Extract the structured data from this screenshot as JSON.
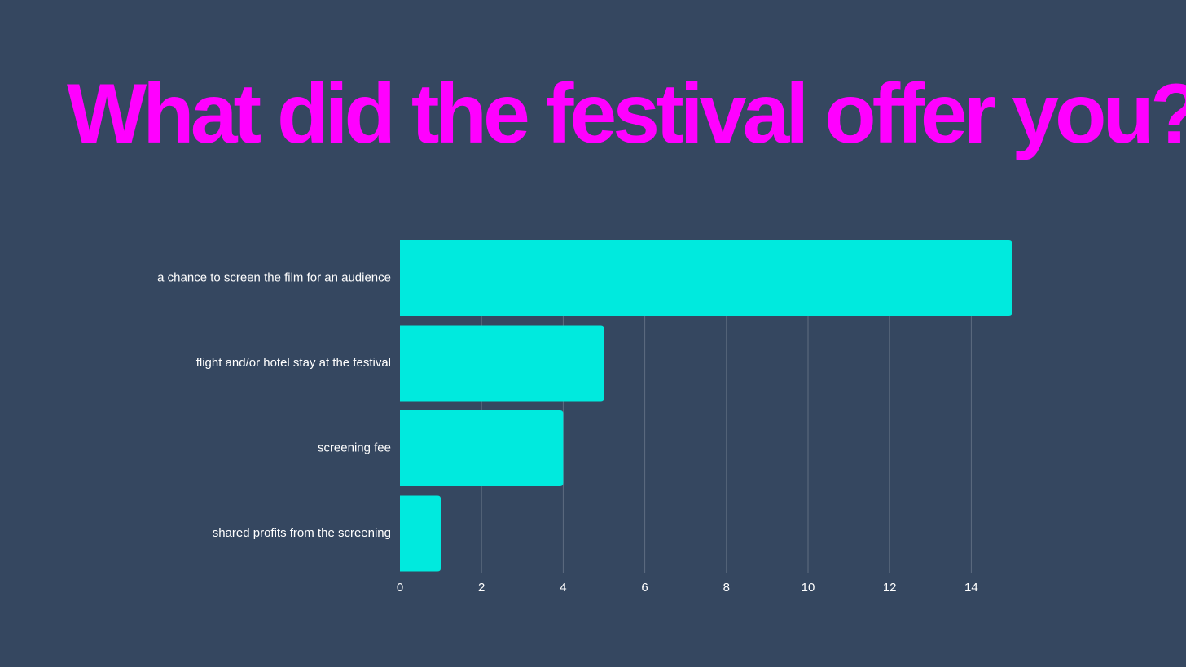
{
  "colors": {
    "background": "#354760",
    "title": "#FF00FF",
    "bar": "#00EADE",
    "text": "#FFFFFF",
    "gridline": "#5E6D81"
  },
  "slide": {
    "title": "What did the festival offer you?"
  },
  "chart_data": {
    "type": "bar",
    "orientation": "horizontal",
    "categories": [
      "a chance to screen the film for an audience",
      "flight and/or hotel stay at the festival",
      "screening fee",
      "shared profits from the screening"
    ],
    "values": [
      15,
      5,
      4,
      1
    ],
    "xlim": [
      0,
      15
    ],
    "xticks": [
      0,
      2,
      4,
      6,
      8,
      10,
      12,
      14
    ],
    "xtick_labels": [
      "0",
      "2",
      "4",
      "6",
      "8",
      "10",
      "12",
      "14"
    ],
    "grid": "vertical",
    "legend": "none",
    "title": "",
    "xlabel": "",
    "ylabel": ""
  }
}
